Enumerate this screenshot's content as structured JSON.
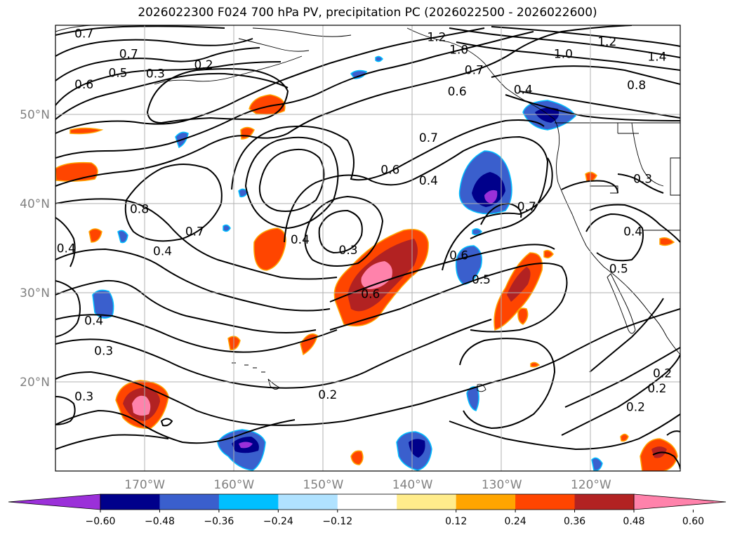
{
  "title": "2026022300 F024 700 hPa PV, precipitation PC (2026022500 - 2026022600)",
  "map": {
    "lon_range": [
      -180,
      -110
    ],
    "lat_range": [
      10,
      60
    ],
    "lat_ticks": [
      {
        "value": 20,
        "label": "20°N"
      },
      {
        "value": 30,
        "label": "30°N"
      },
      {
        "value": 40,
        "label": "40°N"
      },
      {
        "value": 50,
        "label": "50°N"
      }
    ],
    "lon_ticks": [
      {
        "value": -170,
        "label": "170°W"
      },
      {
        "value": -160,
        "label": "160°W"
      },
      {
        "value": -150,
        "label": "150°W"
      },
      {
        "value": -140,
        "label": "140°W"
      },
      {
        "value": -130,
        "label": "130°W"
      },
      {
        "value": -120,
        "label": "120°W"
      }
    ],
    "contour_labels": [
      {
        "text": "0.7",
        "lon": -176.8,
        "lat": 59.1
      },
      {
        "text": "0.7",
        "lon": -171.8,
        "lat": 56.8
      },
      {
        "text": "0.5",
        "lon": -173.0,
        "lat": 54.7
      },
      {
        "text": "0.6",
        "lon": -176.8,
        "lat": 53.4
      },
      {
        "text": "0.3",
        "lon": -168.8,
        "lat": 54.6
      },
      {
        "text": "0.2",
        "lon": -163.4,
        "lat": 55.6
      },
      {
        "text": "1.2",
        "lon": -137.3,
        "lat": 58.7
      },
      {
        "text": "1.0",
        "lon": -134.8,
        "lat": 57.3
      },
      {
        "text": "0.7",
        "lon": -133.1,
        "lat": 55.0
      },
      {
        "text": "0.6",
        "lon": -135.0,
        "lat": 52.6
      },
      {
        "text": "1.0",
        "lon": -123.1,
        "lat": 56.8
      },
      {
        "text": "1.2",
        "lon": -118.2,
        "lat": 58.2
      },
      {
        "text": "1.4",
        "lon": -112.6,
        "lat": 56.5
      },
      {
        "text": "0.8",
        "lon": -114.9,
        "lat": 53.3
      },
      {
        "text": "0.4",
        "lon": -127.6,
        "lat": 52.8
      },
      {
        "text": "0.7",
        "lon": -138.2,
        "lat": 47.4
      },
      {
        "text": "0.6",
        "lon": -142.5,
        "lat": 43.8
      },
      {
        "text": "0.4",
        "lon": -138.2,
        "lat": 42.6
      },
      {
        "text": "0.7",
        "lon": -127.2,
        "lat": 39.7
      },
      {
        "text": "0.8",
        "lon": -170.6,
        "lat": 39.4
      },
      {
        "text": "0.7",
        "lon": -164.4,
        "lat": 36.9
      },
      {
        "text": "0.4",
        "lon": -152.6,
        "lat": 36.0
      },
      {
        "text": "0.3",
        "lon": -147.2,
        "lat": 34.8
      },
      {
        "text": "0.6",
        "lon": -134.8,
        "lat": 34.2
      },
      {
        "text": "0.5",
        "lon": -132.3,
        "lat": 31.5
      },
      {
        "text": "0.6",
        "lon": -144.7,
        "lat": 29.9
      },
      {
        "text": "0.4",
        "lon": -178.8,
        "lat": 35.0
      },
      {
        "text": "0.4",
        "lon": -168.0,
        "lat": 34.7
      },
      {
        "text": "0.4",
        "lon": -175.7,
        "lat": 26.9
      },
      {
        "text": "0.3",
        "lon": -174.6,
        "lat": 23.5
      },
      {
        "text": "0.3",
        "lon": -176.8,
        "lat": 18.4
      },
      {
        "text": "0.2",
        "lon": -149.5,
        "lat": 18.6
      },
      {
        "text": "0.4",
        "lon": -115.3,
        "lat": 36.9
      },
      {
        "text": "0.5",
        "lon": -116.9,
        "lat": 32.7
      },
      {
        "text": "0.2",
        "lon": -112.6,
        "lat": 19.3
      },
      {
        "text": "0.2",
        "lon": -115.0,
        "lat": 17.2
      },
      {
        "text": "0.2",
        "lon": -112.0,
        "lat": 21.0
      },
      {
        "text": "0.3",
        "lon": -114.2,
        "lat": 42.8
      }
    ]
  },
  "colorbar": {
    "ticks": [
      "−0.60",
      "−0.48",
      "−0.36",
      "−0.24",
      "−0.12",
      "0.12",
      "0.24",
      "0.36",
      "0.48",
      "0.60"
    ],
    "colors": {
      "extend_low": "#9b30d9",
      "b1": "#00008b",
      "b2": "#3a5fcd",
      "b3": "#00bfff",
      "b4": "#b0e2ff",
      "b5": "#ffffff",
      "b6": "#ffec8b",
      "b7": "#ffa500",
      "b8": "#ff4500",
      "b9": "#b22222",
      "extend_high": "#ff82ab"
    }
  }
}
